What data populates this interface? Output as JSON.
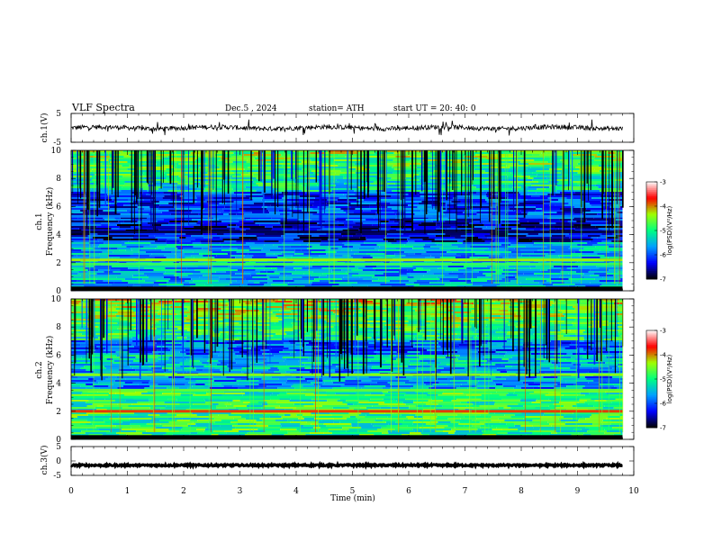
{
  "header": {
    "title": "VLF  Spectra",
    "date": "Dec.5  , 2024",
    "station": "station= ATH",
    "start": "start  UT  =   20: 40: 0"
  },
  "chart_data": [
    {
      "type": "line",
      "panel": "ch1-waveform",
      "ylabel": "ch.1(V)",
      "ylim": [
        -5,
        5
      ],
      "y_ticks": [
        "5",
        "-5"
      ],
      "x_range_min": [
        0,
        9.8
      ],
      "baseline_V": 0,
      "color": "#000000"
    },
    {
      "type": "heatmap",
      "panel": "ch1-spectrogram",
      "ylabel_channel": "ch.1",
      "ylabel": "Frequency (kHz)",
      "ylim": [
        0,
        10
      ],
      "y_ticks": [
        "0",
        "2",
        "4",
        "6",
        "8",
        "10"
      ],
      "x_range_min": [
        0,
        9.8
      ],
      "colorbar": {
        "label": "log(PSD)(V²/Hz)",
        "range": [
          -7,
          -3
        ],
        "ticks": [
          "-3",
          "-4",
          "-5",
          "-6",
          "-7"
        ]
      },
      "bands_kHz": [
        {
          "freq": 2.2,
          "level": -4.3
        },
        {
          "freq": 1.9,
          "level": -4.8
        },
        {
          "freq": 4.2,
          "level": -6.8
        },
        {
          "freq": 5.3,
          "level": -5.8
        }
      ]
    },
    {
      "type": "heatmap",
      "panel": "ch2-spectrogram",
      "ylabel_channel": "ch.2",
      "ylabel": "Frequency (kHz)",
      "ylim": [
        0,
        10
      ],
      "y_ticks": [
        "0",
        "2",
        "4",
        "6",
        "8",
        "10"
      ],
      "x_range_min": [
        0,
        9.8
      ],
      "colorbar": {
        "label": "log(PSD)(V²/Hz)",
        "range": [
          -7,
          -3
        ],
        "ticks": [
          "-3",
          "-4",
          "-5",
          "-6",
          "-7"
        ]
      },
      "bands_kHz": [
        {
          "freq": 2.0,
          "level": -3.8
        },
        {
          "freq": 3.5,
          "level": -4.6
        },
        {
          "freq": 4.6,
          "level": -4.4
        },
        {
          "freq": 3.0,
          "level": -5.0
        }
      ]
    },
    {
      "type": "line",
      "panel": "ch3-waveform",
      "ylabel": "ch.3(V)",
      "ylim": [
        -5,
        5
      ],
      "y_ticks": [
        "5",
        "0",
        "-5"
      ],
      "x_range_min": [
        0,
        9.8
      ],
      "baseline_V": -1.5,
      "color": "#000000"
    }
  ],
  "x_axis": {
    "label": "Time  (min)",
    "range": [
      0,
      10
    ],
    "ticks": [
      "0",
      "1",
      "2",
      "3",
      "4",
      "5",
      "6",
      "7",
      "8",
      "9",
      "10"
    ]
  },
  "colormap": [
    "#000000",
    "#0000ff",
    "#00a0ff",
    "#00ff80",
    "#a0ff00",
    "#ff0000",
    "#ffffff"
  ]
}
